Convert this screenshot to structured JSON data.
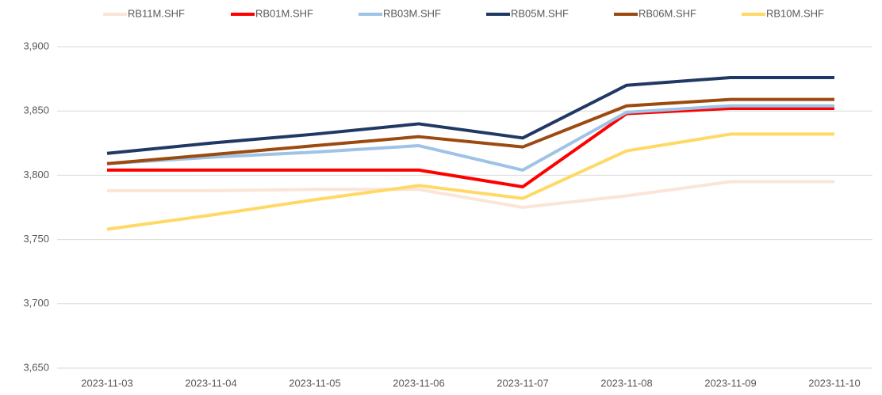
{
  "chart_data": {
    "type": "line",
    "categories": [
      "2023-11-03",
      "2023-11-04",
      "2023-11-05",
      "2023-11-06",
      "2023-11-07",
      "2023-11-08",
      "2023-11-09",
      "2023-11-10"
    ],
    "series": [
      {
        "name": "RB11M.SHF",
        "color": "#fbe5d6",
        "values": [
          3788,
          3788,
          3789,
          3789,
          3775,
          3784,
          3795,
          3795
        ]
      },
      {
        "name": "RB01M.SHF",
        "color": "#ff0000",
        "values": [
          3804,
          3804,
          3804,
          3804,
          3791,
          3848,
          3852,
          3852
        ]
      },
      {
        "name": "RB03M.SHF",
        "color": "#9dc3e6",
        "values": [
          3809,
          3814,
          3818,
          3823,
          3804,
          3849,
          3854,
          3854
        ]
      },
      {
        "name": "RB05M.SHF",
        "color": "#203864",
        "values": [
          3817,
          3825,
          3832,
          3840,
          3829,
          3870,
          3876,
          3876
        ]
      },
      {
        "name": "RB06M.SHF",
        "color": "#9c4a10",
        "values": [
          3809,
          3816,
          3823,
          3830,
          3822,
          3854,
          3859,
          3859
        ]
      },
      {
        "name": "RB10M.SHF",
        "color": "#ffd966",
        "values": [
          3758,
          3769,
          3781,
          3792,
          3782,
          3819,
          3832,
          3832
        ]
      }
    ],
    "ylim": [
      3650,
      3900
    ],
    "yticks": [
      {
        "value": 3650,
        "label": "3,650"
      },
      {
        "value": 3700,
        "label": "3,700"
      },
      {
        "value": 3750,
        "label": "3,750"
      },
      {
        "value": 3800,
        "label": "3,800"
      },
      {
        "value": 3850,
        "label": "3,850"
      },
      {
        "value": 3900,
        "label": "3,900"
      }
    ],
    "grid": true,
    "legend": "top"
  }
}
